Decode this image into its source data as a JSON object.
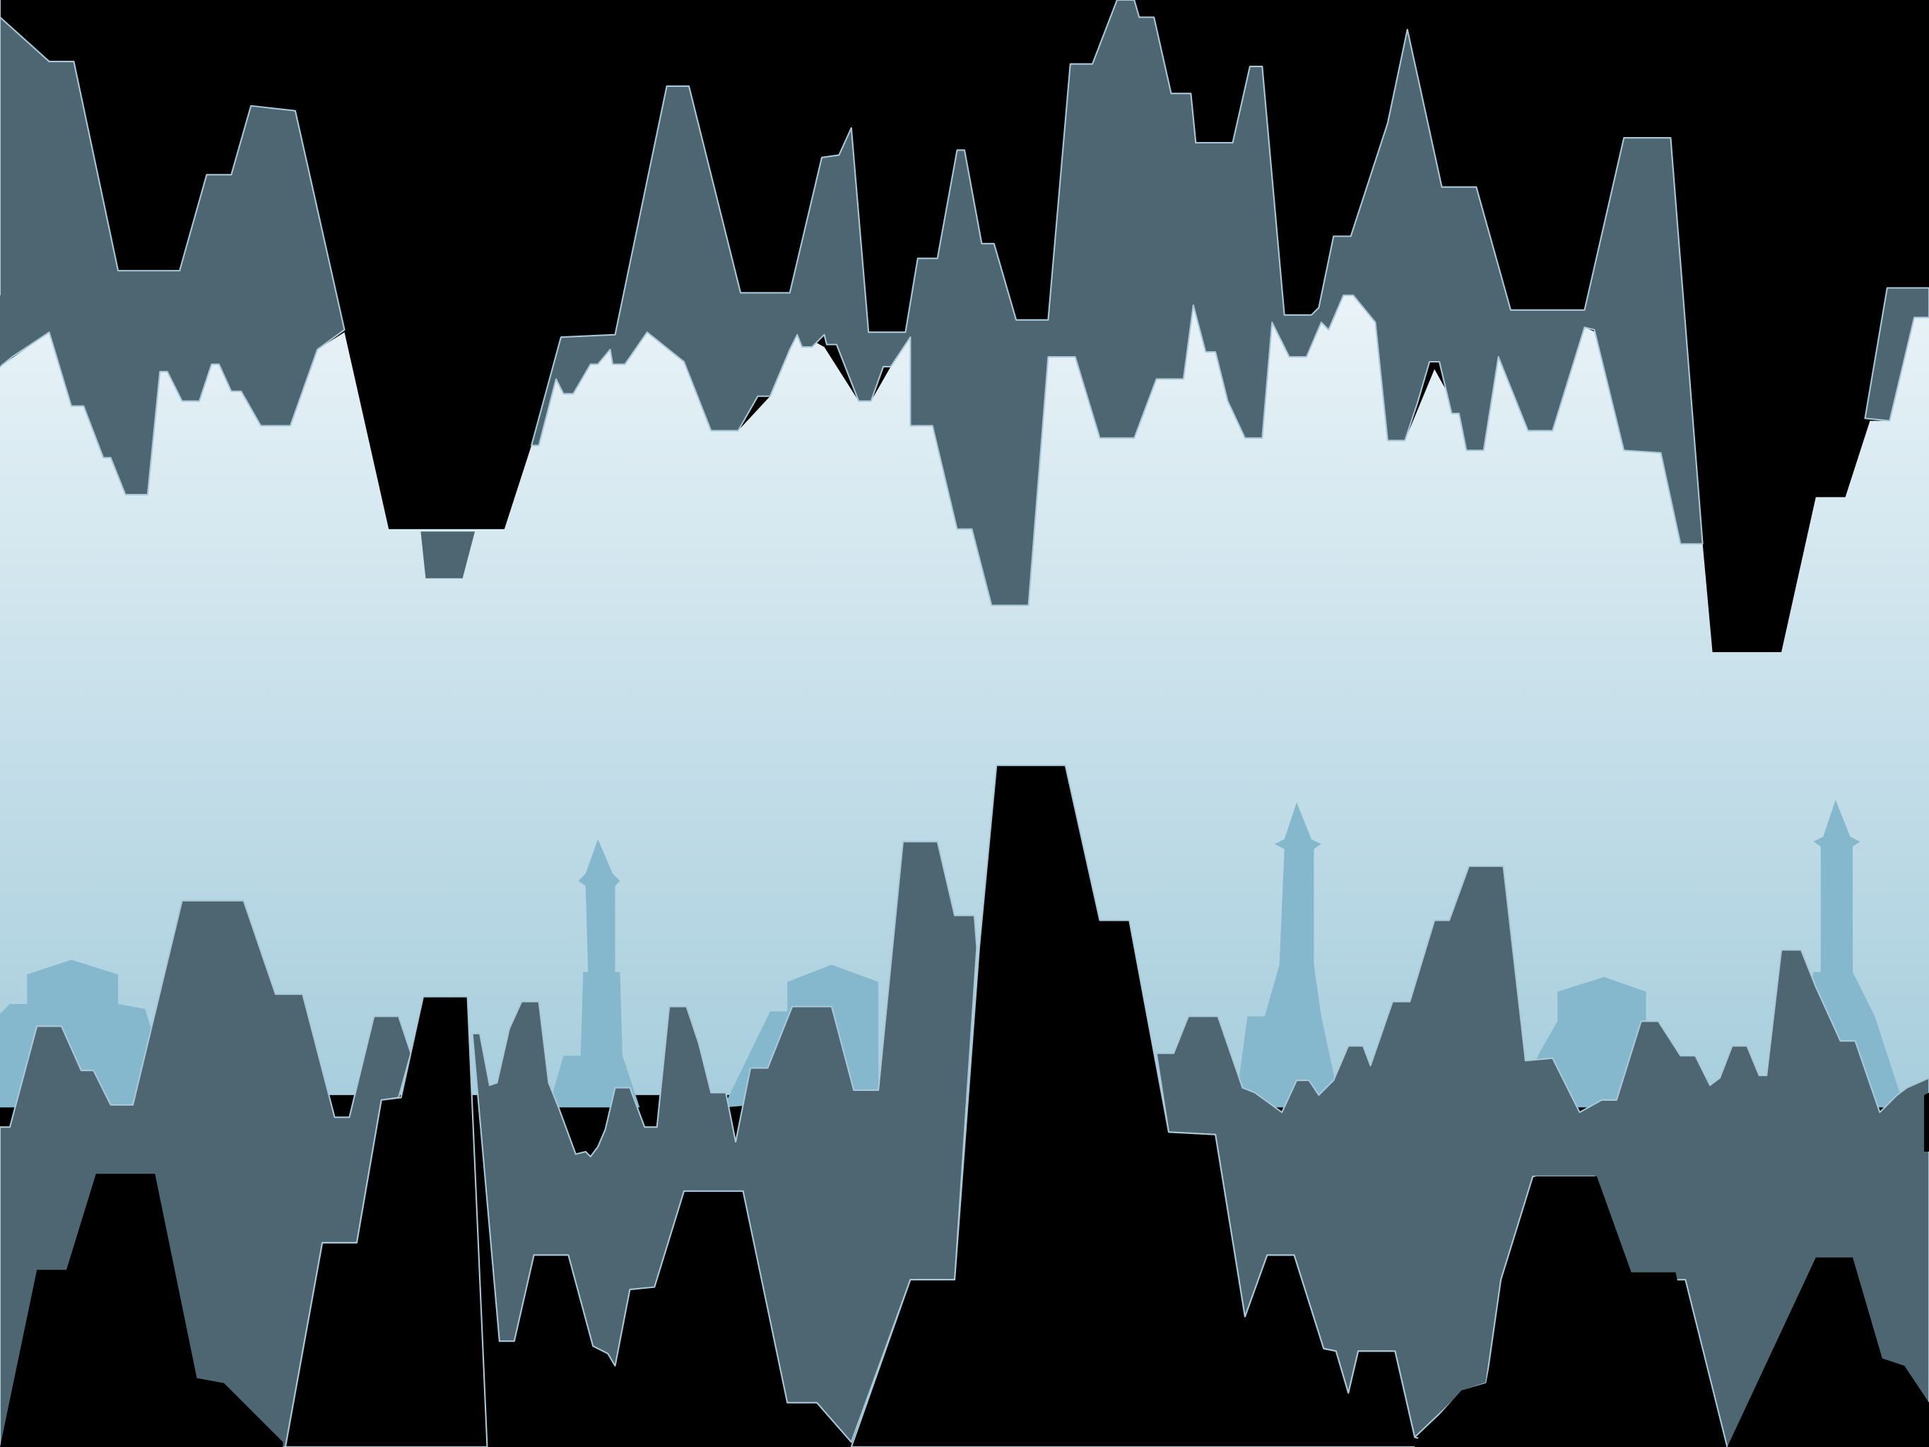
{
  "scene": {
    "kind": "side-scrolling cave runner, gameplay frame",
    "colors": {
      "void": "#000000",
      "rock": "#4e6572",
      "rock_edge": "#a9c9d9",
      "sky_top": "#e9f3f8",
      "sky_bottom": "#a8cedd",
      "towers": "#86b8cd"
    },
    "layers": [
      "cave-ceiling-back",
      "cave-ceiling-front",
      "distant-city-towers",
      "cave-floor-back",
      "cave-floor-front"
    ]
  }
}
